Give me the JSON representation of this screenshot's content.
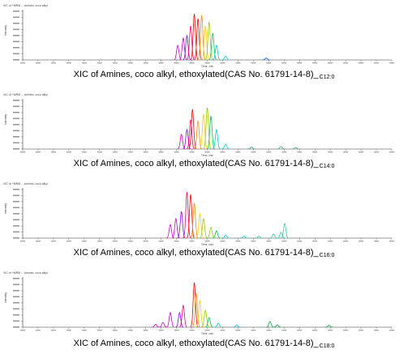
{
  "figure": {
    "panels": [
      {
        "caption_main": "XIC of Amines, coco alkyl, ethoxylated(CAS No. 61791-14-8)_",
        "caption_sub": "C12:0",
        "header_text": "XIC of +MRM ... Amines, coco alkyl",
        "ylabel": "Intensity"
      },
      {
        "caption_main": "XIC of Amines, coco alkyl, ethoxylated(CAS No. 61791-14-8)_",
        "caption_sub": "C14:0",
        "header_text": "XIC of +MRM ... Amines, coco alkyl",
        "ylabel": "Intensity"
      },
      {
        "caption_main": "XIC of Amines, coco alkyl, ethoxylated(CAS No. 61791-14-8)_",
        "caption_sub": "C16:0",
        "header_text": "XIC of +MRM ... Amines, coco alkyl",
        "ylabel": "Intensity"
      },
      {
        "caption_main": "XIC of Amines, coco alkyl, ethoxylated(CAS No. 61791-14-8)_",
        "caption_sub": "C18:0",
        "header_text": "XIC of +MRM ... Amines, coco alkyl",
        "ylabel": "Intensity"
      }
    ]
  },
  "chart_data": [
    {
      "type": "line",
      "title": "XIC of Amines, coco alkyl, ethoxylated(CAS No. 61791-14-8)_C12:0",
      "xlabel": "Time, min",
      "ylabel": "Intensity",
      "xlim": [
        0,
        100
      ],
      "ylim": [
        0,
        100
      ],
      "grid": false,
      "series": [
        {
          "color": "#cc00cc",
          "peaks": [
            [
              42,
              30
            ],
            [
              43.5,
              45
            ]
          ]
        },
        {
          "color": "#8800ff",
          "peaks": [
            [
              44.5,
              50
            ]
          ]
        },
        {
          "color": "#ff0066",
          "peaks": [
            [
              45.5,
              70
            ]
          ]
        },
        {
          "color": "#ff0000",
          "peaks": [
            [
              46.5,
              95
            ],
            [
              47.5,
              85
            ]
          ]
        },
        {
          "color": "#ff8800",
          "peaks": [
            [
              48.5,
              92
            ]
          ]
        },
        {
          "color": "#ffcc00",
          "peaks": [
            [
              49.5,
              70
            ]
          ]
        },
        {
          "color": "#99cc00",
          "peaks": [
            [
              50.5,
              78
            ]
          ]
        },
        {
          "color": "#00cc44",
          "peaks": [
            [
              51.5,
              55
            ]
          ]
        },
        {
          "color": "#00cccc",
          "peaks": [
            [
              52.5,
              30
            ],
            [
              55,
              8
            ]
          ]
        },
        {
          "color": "#0066ff",
          "peaks": [
            [
              66,
              4
            ]
          ]
        }
      ]
    },
    {
      "type": "line",
      "title": "XIC of Amines, coco alkyl, ethoxylated(CAS No. 61791-14-8)_C14:0",
      "xlabel": "Time, min",
      "ylabel": "Intensity",
      "xlim": [
        0,
        100
      ],
      "ylim": [
        0,
        100
      ],
      "grid": false,
      "series": [
        {
          "color": "#cc00cc",
          "peaks": [
            [
              43,
              30
            ]
          ]
        },
        {
          "color": "#8800ff",
          "peaks": [
            [
              44.5,
              40
            ]
          ]
        },
        {
          "color": "#ff0066",
          "peaks": [
            [
              45.5,
              60
            ]
          ]
        },
        {
          "color": "#ff0000",
          "peaks": [
            [
              46,
              82
            ]
          ]
        },
        {
          "color": "#ff8800",
          "peaks": [
            [
              47.5,
              58
            ]
          ]
        },
        {
          "color": "#ffcc00",
          "peaks": [
            [
              49,
              72
            ]
          ]
        },
        {
          "color": "#99cc00",
          "peaks": [
            [
              50,
              85
            ]
          ]
        },
        {
          "color": "#00cc44",
          "peaks": [
            [
              51,
              68
            ]
          ]
        },
        {
          "color": "#00cccc",
          "peaks": [
            [
              52.5,
              40
            ],
            [
              55,
              10
            ]
          ]
        },
        {
          "color": "#33aa88",
          "peaks": [
            [
              62,
              4
            ],
            [
              70,
              5
            ],
            [
              74,
              3
            ]
          ]
        }
      ]
    },
    {
      "type": "line",
      "title": "XIC of Amines, coco alkyl, ethoxylated(CAS No. 61791-14-8)_C16:0",
      "xlabel": "Time, min",
      "ylabel": "Intensity",
      "xlim": [
        0,
        100
      ],
      "ylim": [
        0,
        100
      ],
      "grid": false,
      "series": [
        {
          "color": "#cc00cc",
          "peaks": [
            [
              40,
              28
            ],
            [
              41.5,
              40
            ]
          ]
        },
        {
          "color": "#8800ff",
          "peaks": [
            [
              43,
              55
            ]
          ]
        },
        {
          "color": "#ff0066",
          "peaks": [
            [
              44.5,
              95
            ]
          ]
        },
        {
          "color": "#ff0000",
          "peaks": [
            [
              45.5,
              90
            ]
          ]
        },
        {
          "color": "#ff8800",
          "peaks": [
            [
              46.5,
              72
            ]
          ]
        },
        {
          "color": "#ffcc00",
          "peaks": [
            [
              48,
              50
            ]
          ]
        },
        {
          "color": "#99cc00",
          "peaks": [
            [
              49,
              40
            ],
            [
              51,
              22
            ]
          ]
        },
        {
          "color": "#00cc44",
          "peaks": [
            [
              52.5,
              15
            ]
          ]
        },
        {
          "color": "#00cccc",
          "peaks": [
            [
              55,
              6
            ],
            [
              60,
              4
            ]
          ]
        },
        {
          "color": "#33cc99",
          "peaks": [
            [
              64,
              4
            ],
            [
              68,
              8
            ],
            [
              70,
              12
            ],
            [
              71,
              30
            ]
          ]
        }
      ]
    },
    {
      "type": "line",
      "title": "XIC of Amines, coco alkyl, ethoxylated(CAS No. 61791-14-8)_C18:0",
      "xlabel": "Time, min",
      "ylabel": "Intensity",
      "xlim": [
        0,
        100
      ],
      "ylim": [
        0,
        100
      ],
      "grid": false,
      "series": [
        {
          "color": "#cc00cc",
          "peaks": [
            [
              36,
              6
            ],
            [
              38,
              10
            ],
            [
              40,
              30
            ]
          ]
        },
        {
          "color": "#8800ff",
          "peaks": [
            [
              42.5,
              30
            ]
          ]
        },
        {
          "color": "#ff0066",
          "peaks": [
            [
              43.5,
              45
            ]
          ]
        },
        {
          "color": "#ff0000",
          "peaks": [
            [
              46.5,
              92
            ]
          ]
        },
        {
          "color": "#ff8800",
          "peaks": [
            [
              47,
              70
            ]
          ]
        },
        {
          "color": "#ffcc00",
          "peaks": [
            [
              48,
              55
            ]
          ]
        },
        {
          "color": "#99cc00",
          "peaks": [
            [
              49.5,
              35
            ]
          ]
        },
        {
          "color": "#00cc44",
          "peaks": [
            [
              50.5,
              20
            ]
          ]
        },
        {
          "color": "#00cccc",
          "peaks": [
            [
              53,
              8
            ],
            [
              58,
              5
            ]
          ]
        },
        {
          "color": "#00aa44",
          "peaks": [
            [
              67,
              12
            ],
            [
              69,
              5
            ],
            [
              83,
              4
            ]
          ]
        }
      ]
    }
  ]
}
